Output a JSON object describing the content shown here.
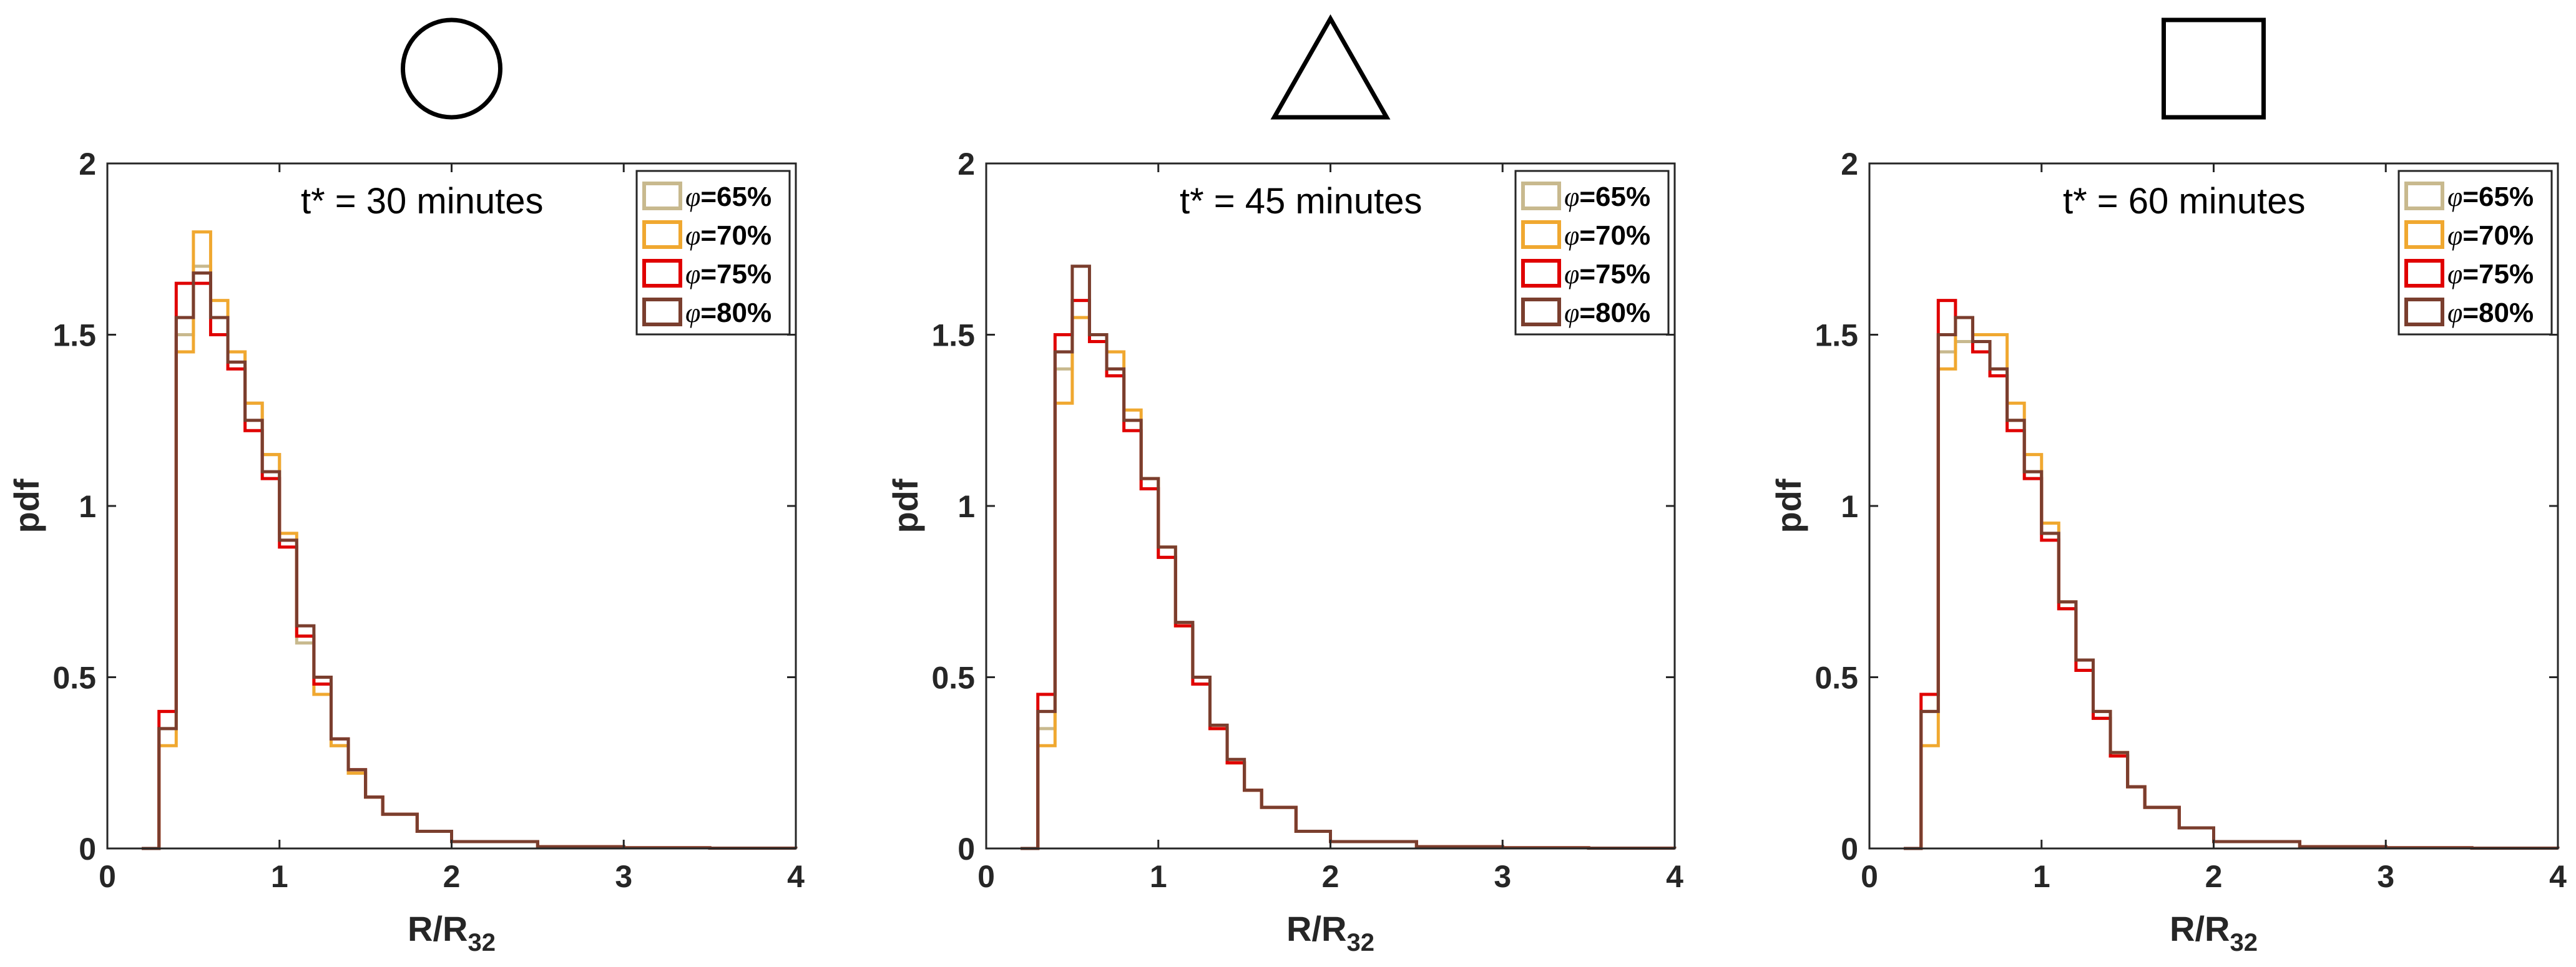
{
  "chart_data": [
    {
      "type": "line",
      "marker_icon": "circle-icon",
      "annotation": "t* = 30 minutes",
      "xlabel": "R/R",
      "xlabel_sub": "32",
      "ylabel": "pdf",
      "xlim": [
        0,
        4
      ],
      "ylim": [
        0,
        2
      ],
      "xticks": [
        0,
        1,
        2,
        3,
        4
      ],
      "yticks": [
        0,
        0.5,
        1,
        1.5,
        2
      ],
      "ytick_labels": [
        "0",
        "0.5",
        "1",
        "1.5",
        "2"
      ],
      "legend_placement": "top-right",
      "x": [
        0.2,
        0.3,
        0.4,
        0.5,
        0.6,
        0.7,
        0.8,
        0.9,
        1.0,
        1.1,
        1.2,
        1.3,
        1.4,
        1.5,
        1.6,
        1.8,
        2.0,
        2.5,
        3.0,
        3.5,
        4.0
      ],
      "series": [
        {
          "name": "=65%",
          "values": [
            0.0,
            0.35,
            1.5,
            1.7,
            1.55,
            1.45,
            1.3,
            1.15,
            0.9,
            0.6,
            0.45,
            0.3,
            0.22,
            0.15,
            0.1,
            0.05,
            0.02,
            0.005,
            0.002,
            0.001,
            0.0
          ]
        },
        {
          "name": "=70%",
          "values": [
            0.0,
            0.3,
            1.45,
            1.8,
            1.6,
            1.45,
            1.3,
            1.15,
            0.92,
            0.62,
            0.45,
            0.3,
            0.22,
            0.15,
            0.1,
            0.05,
            0.02,
            0.005,
            0.002,
            0.001,
            0.0
          ]
        },
        {
          "name": "=75%",
          "values": [
            0.0,
            0.4,
            1.65,
            1.65,
            1.5,
            1.4,
            1.22,
            1.08,
            0.88,
            0.62,
            0.48,
            0.32,
            0.23,
            0.15,
            0.1,
            0.05,
            0.02,
            0.005,
            0.002,
            0.001,
            0.0
          ]
        },
        {
          "name": "=80%",
          "values": [
            0.0,
            0.35,
            1.55,
            1.68,
            1.55,
            1.42,
            1.25,
            1.1,
            0.9,
            0.65,
            0.5,
            0.32,
            0.23,
            0.15,
            0.1,
            0.05,
            0.02,
            0.005,
            0.002,
            0.001,
            0.0
          ]
        }
      ]
    },
    {
      "type": "line",
      "marker_icon": "triangle-icon",
      "annotation": "t* = 45 minutes",
      "xlabel": "R/R",
      "xlabel_sub": "32",
      "ylabel": "pdf",
      "xlim": [
        0,
        4
      ],
      "ylim": [
        0,
        2
      ],
      "xticks": [
        0,
        1,
        2,
        3,
        4
      ],
      "yticks": [
        0,
        0.5,
        1,
        1.5,
        2
      ],
      "ytick_labels": [
        "0",
        "0.5",
        "1",
        "1.5",
        "2"
      ],
      "legend_placement": "top-right",
      "x": [
        0.2,
        0.3,
        0.4,
        0.5,
        0.6,
        0.7,
        0.8,
        0.9,
        1.0,
        1.1,
        1.2,
        1.3,
        1.4,
        1.5,
        1.6,
        1.8,
        2.0,
        2.5,
        3.0,
        3.5,
        4.0
      ],
      "series": [
        {
          "name": "=65%",
          "values": [
            0.0,
            0.35,
            1.4,
            1.55,
            1.5,
            1.4,
            1.25,
            1.05,
            0.85,
            0.65,
            0.48,
            0.35,
            0.25,
            0.17,
            0.12,
            0.05,
            0.02,
            0.005,
            0.002,
            0.001,
            0.0
          ]
        },
        {
          "name": "=70%",
          "values": [
            0.0,
            0.3,
            1.3,
            1.55,
            1.5,
            1.45,
            1.28,
            1.08,
            0.88,
            0.65,
            0.5,
            0.35,
            0.25,
            0.17,
            0.12,
            0.05,
            0.02,
            0.005,
            0.002,
            0.001,
            0.0
          ]
        },
        {
          "name": "=75%",
          "values": [
            0.0,
            0.45,
            1.5,
            1.6,
            1.48,
            1.38,
            1.22,
            1.05,
            0.85,
            0.65,
            0.48,
            0.35,
            0.25,
            0.17,
            0.12,
            0.05,
            0.02,
            0.005,
            0.002,
            0.001,
            0.0
          ]
        },
        {
          "name": "=80%",
          "values": [
            0.0,
            0.4,
            1.45,
            1.7,
            1.5,
            1.4,
            1.25,
            1.08,
            0.88,
            0.66,
            0.5,
            0.36,
            0.26,
            0.17,
            0.12,
            0.05,
            0.02,
            0.005,
            0.002,
            0.001,
            0.0
          ]
        }
      ]
    },
    {
      "type": "line",
      "marker_icon": "square-icon",
      "annotation": "t* = 60 minutes",
      "xlabel": "R/R",
      "xlabel_sub": "32",
      "ylabel": "pdf",
      "xlim": [
        0,
        4
      ],
      "ylim": [
        0,
        2
      ],
      "xticks": [
        0,
        1,
        2,
        3,
        4
      ],
      "yticks": [
        0,
        0.5,
        1,
        1.5,
        2
      ],
      "ytick_labels": [
        "0",
        "0.5",
        "1",
        "1.5",
        "2"
      ],
      "legend_placement": "top-right",
      "x": [
        0.2,
        0.3,
        0.4,
        0.5,
        0.6,
        0.7,
        0.8,
        0.9,
        1.0,
        1.1,
        1.2,
        1.3,
        1.4,
        1.5,
        1.6,
        1.8,
        2.0,
        2.5,
        3.0,
        3.5,
        4.0
      ],
      "series": [
        {
          "name": "=65%",
          "values": [
            0.0,
            0.4,
            1.45,
            1.48,
            1.45,
            1.4,
            1.25,
            1.1,
            0.92,
            0.7,
            0.52,
            0.38,
            0.27,
            0.18,
            0.12,
            0.06,
            0.02,
            0.005,
            0.002,
            0.001,
            0.0
          ]
        },
        {
          "name": "=70%",
          "values": [
            0.0,
            0.3,
            1.4,
            1.55,
            1.5,
            1.5,
            1.3,
            1.15,
            0.95,
            0.72,
            0.55,
            0.4,
            0.28,
            0.18,
            0.12,
            0.06,
            0.02,
            0.005,
            0.002,
            0.001,
            0.0
          ]
        },
        {
          "name": "=75%",
          "values": [
            0.0,
            0.45,
            1.6,
            1.55,
            1.45,
            1.38,
            1.22,
            1.08,
            0.9,
            0.7,
            0.52,
            0.38,
            0.27,
            0.18,
            0.12,
            0.06,
            0.02,
            0.005,
            0.002,
            0.001,
            0.0
          ]
        },
        {
          "name": "=80%",
          "values": [
            0.0,
            0.4,
            1.5,
            1.55,
            1.48,
            1.4,
            1.25,
            1.1,
            0.92,
            0.72,
            0.55,
            0.4,
            0.28,
            0.18,
            0.12,
            0.06,
            0.02,
            0.005,
            0.002,
            0.001,
            0.0
          ]
        }
      ]
    }
  ],
  "legend_symbol": "φ",
  "colors": {
    "=65%": "#C8B98E",
    "=70%": "#F0A830",
    "=75%": "#E00000",
    "=80%": "#7A3E2E"
  }
}
